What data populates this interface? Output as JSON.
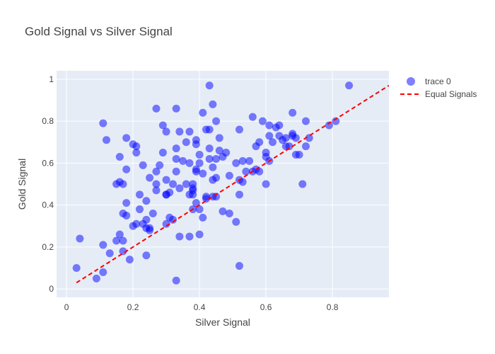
{
  "chart_data": {
    "type": "scatter",
    "title": "Gold Signal vs Silver Signal",
    "xlabel": "Silver Signal",
    "ylabel": "Gold Signal",
    "xlim": [
      -0.03,
      0.97
    ],
    "ylim": [
      -0.04,
      1.04
    ],
    "x_ticks": [
      0,
      0.2,
      0.4,
      0.6,
      0.8
    ],
    "x_tick_labels": [
      "0",
      "0.2",
      "0.4",
      "0.6",
      "0.8"
    ],
    "y_ticks": [
      0,
      0.2,
      0.4,
      0.6,
      0.8,
      1
    ],
    "y_tick_labels": [
      "0",
      "0.2",
      "0.4",
      "0.6",
      "0.8",
      "1"
    ],
    "grid": true,
    "legend_position": "top-right",
    "series": [
      {
        "name": "trace 0",
        "mode": "markers",
        "color": "#0000ff",
        "opacity": 0.5,
        "x": [
          0.03,
          0.04,
          0.09,
          0.11,
          0.11,
          0.11,
          0.12,
          0.13,
          0.15,
          0.15,
          0.16,
          0.16,
          0.16,
          0.17,
          0.17,
          0.17,
          0.17,
          0.18,
          0.18,
          0.18,
          0.18,
          0.19,
          0.2,
          0.2,
          0.21,
          0.21,
          0.21,
          0.22,
          0.22,
          0.23,
          0.23,
          0.24,
          0.24,
          0.24,
          0.24,
          0.25,
          0.25,
          0.25,
          0.26,
          0.27,
          0.27,
          0.27,
          0.27,
          0.28,
          0.29,
          0.29,
          0.3,
          0.3,
          0.3,
          0.3,
          0.3,
          0.31,
          0.31,
          0.32,
          0.32,
          0.33,
          0.33,
          0.33,
          0.33,
          0.33,
          0.34,
          0.34,
          0.34,
          0.35,
          0.36,
          0.36,
          0.37,
          0.37,
          0.37,
          0.37,
          0.38,
          0.38,
          0.38,
          0.38,
          0.38,
          0.39,
          0.39,
          0.39,
          0.39,
          0.39,
          0.4,
          0.4,
          0.4,
          0.4,
          0.41,
          0.41,
          0.41,
          0.42,
          0.42,
          0.42,
          0.43,
          0.43,
          0.43,
          0.43,
          0.44,
          0.44,
          0.44,
          0.44,
          0.45,
          0.45,
          0.45,
          0.45,
          0.46,
          0.46,
          0.47,
          0.47,
          0.48,
          0.49,
          0.49,
          0.51,
          0.51,
          0.52,
          0.52,
          0.52,
          0.52,
          0.53,
          0.53,
          0.54,
          0.55,
          0.56,
          0.56,
          0.57,
          0.57,
          0.58,
          0.58,
          0.59,
          0.6,
          0.6,
          0.6,
          0.61,
          0.61,
          0.61,
          0.62,
          0.63,
          0.64,
          0.64,
          0.65,
          0.66,
          0.66,
          0.67,
          0.68,
          0.68,
          0.68,
          0.69,
          0.69,
          0.7,
          0.71,
          0.72,
          0.72,
          0.73,
          0.79,
          0.81,
          0.85
        ],
        "y": [
          0.1,
          0.24,
          0.05,
          0.79,
          0.21,
          0.08,
          0.71,
          0.17,
          0.23,
          0.5,
          0.63,
          0.51,
          0.26,
          0.5,
          0.36,
          0.23,
          0.18,
          0.72,
          0.57,
          0.41,
          0.35,
          0.14,
          0.69,
          0.3,
          0.68,
          0.65,
          0.31,
          0.45,
          0.38,
          0.59,
          0.31,
          0.42,
          0.33,
          0.29,
          0.16,
          0.53,
          0.29,
          0.28,
          0.36,
          0.86,
          0.56,
          0.5,
          0.47,
          0.59,
          0.78,
          0.65,
          0.75,
          0.52,
          0.45,
          0.45,
          0.31,
          0.46,
          0.34,
          0.5,
          0.33,
          0.86,
          0.67,
          0.62,
          0.56,
          0.04,
          0.75,
          0.48,
          0.25,
          0.61,
          0.5,
          0.7,
          0.75,
          0.6,
          0.45,
          0.25,
          0.5,
          0.48,
          0.47,
          0.45,
          0.38,
          0.71,
          0.69,
          0.57,
          0.56,
          0.41,
          0.64,
          0.6,
          0.38,
          0.26,
          0.84,
          0.55,
          0.34,
          0.76,
          0.44,
          0.43,
          0.97,
          0.76,
          0.67,
          0.62,
          0.88,
          0.58,
          0.52,
          0.44,
          0.8,
          0.62,
          0.53,
          0.44,
          0.72,
          0.66,
          0.63,
          0.37,
          0.65,
          0.54,
          0.36,
          0.6,
          0.32,
          0.76,
          0.52,
          0.45,
          0.11,
          0.61,
          0.51,
          0.56,
          0.61,
          0.82,
          0.56,
          0.68,
          0.57,
          0.7,
          0.56,
          0.8,
          0.63,
          0.65,
          0.5,
          0.78,
          0.73,
          0.61,
          0.7,
          0.77,
          0.78,
          0.73,
          0.71,
          0.72,
          0.68,
          0.68,
          0.84,
          0.74,
          0.73,
          0.72,
          0.64,
          0.64,
          0.5,
          0.8,
          0.68,
          0.72,
          0.78,
          0.8,
          0.97
        ]
      },
      {
        "name": "Equal Signals",
        "mode": "lines",
        "color": "#ff0000",
        "dash": "dash",
        "x": [
          0.03,
          0.97
        ],
        "y": [
          0.03,
          0.97
        ]
      }
    ]
  }
}
